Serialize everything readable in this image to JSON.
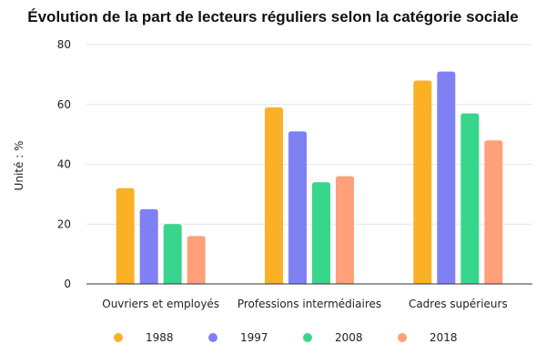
{
  "chart_data": {
    "type": "bar",
    "title": "Évolution de la part de lecteurs réguliers selon la catégorie sociale",
    "ylabel": "Unité : %",
    "xlabel": "",
    "categories": [
      "Ouvriers et employés",
      "Professions intermédiaires",
      "Cadres supérieurs"
    ],
    "series": [
      {
        "name": "1988",
        "color": "#FBB126",
        "values": [
          32,
          59,
          68
        ]
      },
      {
        "name": "1997",
        "color": "#8080F5",
        "values": [
          25,
          51,
          71
        ]
      },
      {
        "name": "2008",
        "color": "#38D68D",
        "values": [
          20,
          34,
          57
        ]
      },
      {
        "name": "2018",
        "color": "#FFA07A",
        "values": [
          16,
          36,
          48
        ]
      }
    ],
    "ylim": [
      0,
      80
    ],
    "yticks": [
      0,
      20,
      40,
      60,
      80
    ],
    "grid": true,
    "legend": "bottom"
  }
}
